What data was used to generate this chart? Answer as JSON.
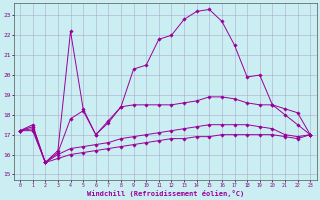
{
  "xlabel": "Windchill (Refroidissement éolien,°C)",
  "bg_color": "#cbeef3",
  "grid_color": "#aaaacc",
  "line_color": "#990099",
  "x_ticks": [
    0,
    1,
    2,
    3,
    4,
    5,
    6,
    7,
    8,
    9,
    10,
    11,
    12,
    13,
    14,
    15,
    16,
    17,
    18,
    19,
    20,
    21,
    22,
    23
  ],
  "y_ticks": [
    15,
    16,
    17,
    18,
    19,
    20,
    21,
    22,
    23
  ],
  "ylim": [
    14.7,
    23.6
  ],
  "xlim": [
    -0.5,
    23.5
  ],
  "series": [
    [
      17.2,
      17.5,
      15.6,
      16.2,
      22.2,
      18.3,
      17.0,
      17.7,
      18.4,
      20.3,
      20.5,
      21.8,
      22.0,
      22.8,
      23.2,
      23.3,
      22.7,
      21.5,
      19.9,
      20.0,
      18.5,
      18.0,
      17.5,
      17.0
    ],
    [
      17.2,
      17.4,
      15.6,
      16.1,
      17.8,
      18.2,
      17.0,
      17.6,
      18.4,
      18.5,
      18.5,
      18.5,
      18.5,
      18.6,
      18.7,
      18.9,
      18.9,
      18.8,
      18.6,
      18.5,
      18.5,
      18.3,
      18.1,
      17.0
    ],
    [
      17.2,
      17.3,
      15.6,
      16.0,
      16.3,
      16.4,
      16.5,
      16.6,
      16.8,
      16.9,
      17.0,
      17.1,
      17.2,
      17.3,
      17.4,
      17.5,
      17.5,
      17.5,
      17.5,
      17.4,
      17.3,
      17.0,
      16.9,
      17.0
    ],
    [
      17.2,
      17.2,
      15.6,
      15.8,
      16.0,
      16.1,
      16.2,
      16.3,
      16.4,
      16.5,
      16.6,
      16.7,
      16.8,
      16.8,
      16.9,
      16.9,
      17.0,
      17.0,
      17.0,
      17.0,
      17.0,
      16.9,
      16.8,
      17.0
    ]
  ]
}
